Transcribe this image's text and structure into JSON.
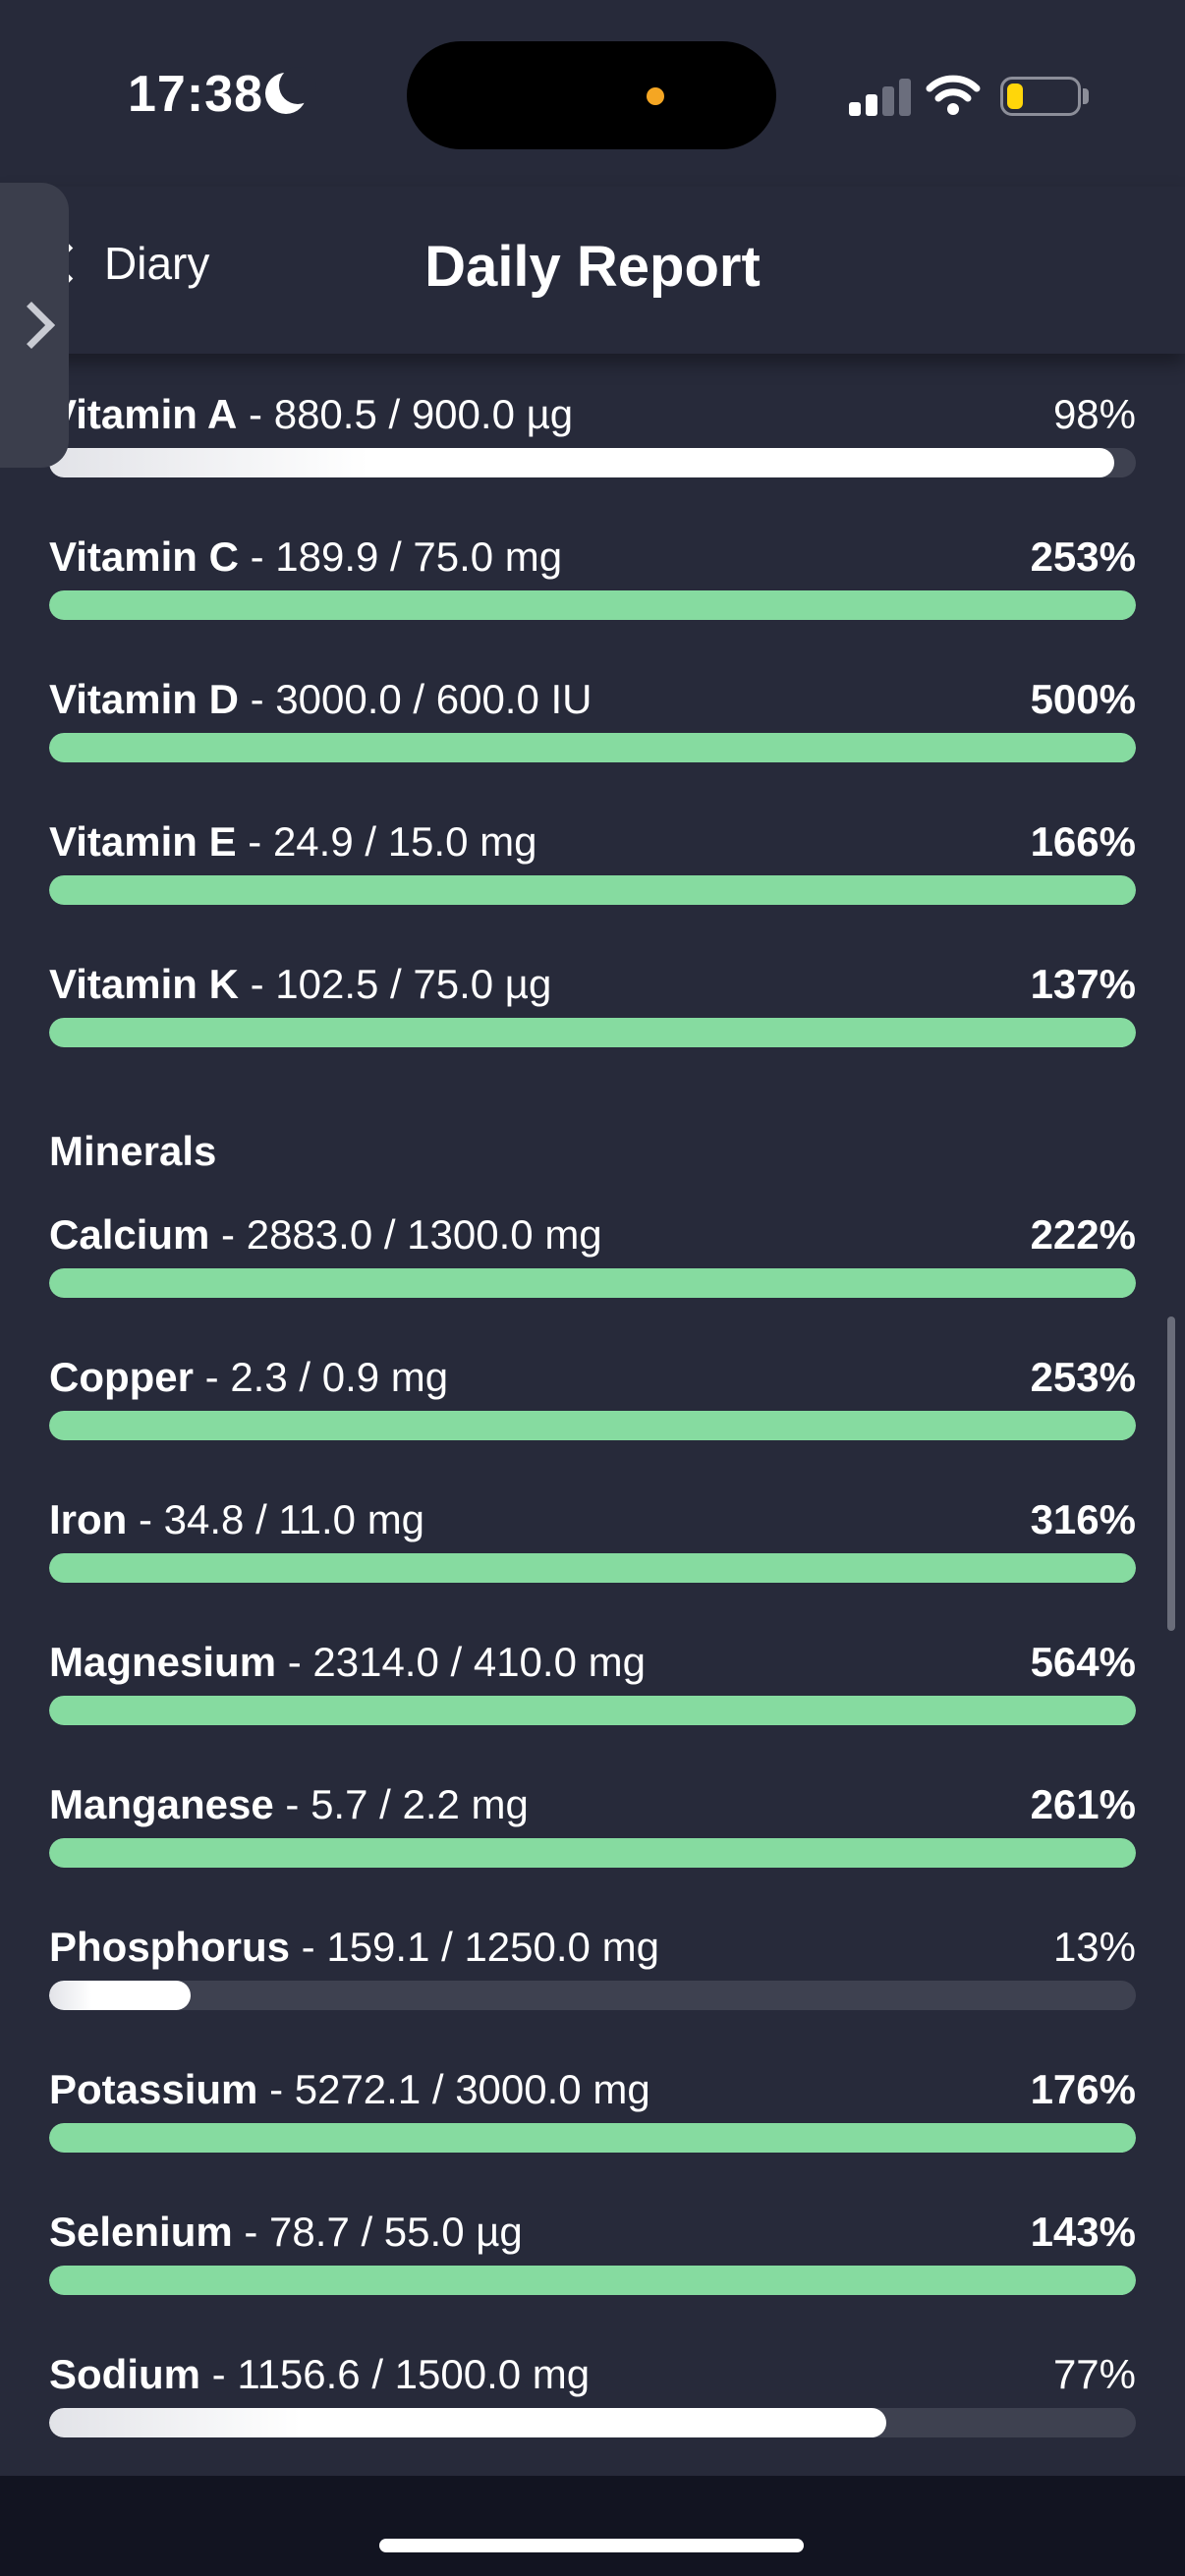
{
  "status_bar": {
    "time": "17:38",
    "battery_color": "#ffd60a"
  },
  "header": {
    "back_label": "Diary",
    "title": "Daily Report"
  },
  "colors": {
    "over_target": "#86dba0",
    "under_target": "#ffffff",
    "track": "#3e4150",
    "background": "#272a3a"
  },
  "sections": [
    {
      "title": "",
      "items": [
        {
          "name": "Vitamin A",
          "amount": " - 880.5 / 900.0 µg",
          "percent": "98%",
          "fraction": 0.98
        },
        {
          "name": "Vitamin C",
          "amount": " - 189.9 / 75.0 mg",
          "percent": "253%",
          "fraction": 2.53
        },
        {
          "name": "Vitamin D",
          "amount": " - 3000.0 / 600.0 IU",
          "percent": "500%",
          "fraction": 5.0
        },
        {
          "name": "Vitamin E",
          "amount": " - 24.9 / 15.0 mg",
          "percent": "166%",
          "fraction": 1.66
        },
        {
          "name": "Vitamin K",
          "amount": " - 102.5 / 75.0 µg",
          "percent": "137%",
          "fraction": 1.37
        }
      ]
    },
    {
      "title": "Minerals",
      "items": [
        {
          "name": "Calcium",
          "amount": " - 2883.0 / 1300.0 mg",
          "percent": "222%",
          "fraction": 2.22
        },
        {
          "name": "Copper",
          "amount": " - 2.3 / 0.9 mg",
          "percent": "253%",
          "fraction": 2.53
        },
        {
          "name": "Iron",
          "amount": " - 34.8 / 11.0 mg",
          "percent": "316%",
          "fraction": 3.16
        },
        {
          "name": "Magnesium",
          "amount": " - 2314.0 / 410.0 mg",
          "percent": "564%",
          "fraction": 5.64
        },
        {
          "name": "Manganese",
          "amount": " - 5.7 / 2.2 mg",
          "percent": "261%",
          "fraction": 2.61
        },
        {
          "name": "Phosphorus",
          "amount": " - 159.1 / 1250.0 mg",
          "percent": "13%",
          "fraction": 0.13
        },
        {
          "name": "Potassium",
          "amount": " - 5272.1 / 3000.0 mg",
          "percent": "176%",
          "fraction": 1.76
        },
        {
          "name": "Selenium",
          "amount": " - 78.7 / 55.0 µg",
          "percent": "143%",
          "fraction": 1.43
        },
        {
          "name": "Sodium",
          "amount": " - 1156.6 / 1500.0 mg",
          "percent": "77%",
          "fraction": 0.77
        }
      ]
    }
  ]
}
